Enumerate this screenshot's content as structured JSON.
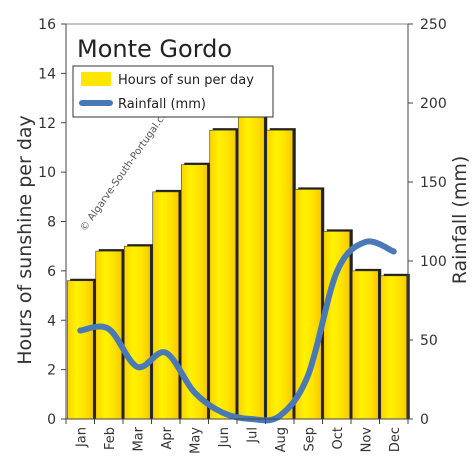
{
  "chart_data": {
    "type": "bar",
    "title": "Monte Gordo",
    "categories": [
      "Jan",
      "Feb",
      "Mar",
      "Apr",
      "May",
      "Jun",
      "Jul",
      "Aug",
      "Sep",
      "Oct",
      "Nov",
      "Dec"
    ],
    "series": [
      {
        "name": "Hours of sun per day",
        "type": "bar",
        "axis": "left",
        "values": [
          5.6,
          6.8,
          7.0,
          9.2,
          10.3,
          11.7,
          12.4,
          11.7,
          9.3,
          7.6,
          6.0,
          5.8
        ]
      },
      {
        "name": "Rainfall (mm)",
        "type": "line",
        "axis": "right",
        "values": [
          56,
          57,
          33,
          42,
          17,
          4,
          0,
          2,
          28,
          93,
          112,
          106
        ]
      }
    ],
    "ylabel": "Hours of sunshine per day",
    "y2label": "Rainfall (mm)",
    "ylim": [
      0,
      16
    ],
    "yticks": [
      0,
      2,
      4,
      6,
      8,
      10,
      12,
      14,
      16
    ],
    "y2lim": [
      0,
      250
    ],
    "y2ticks": [
      0,
      50,
      100,
      150,
      200,
      250
    ],
    "watermark": "© Algarve-South-Portugal.com",
    "legend_position": "top-left",
    "grid": false,
    "colors": {
      "bar_fill": "#ffe600",
      "bar_stroke": "#111111",
      "line": "#4a7ab5",
      "axis": "#444444"
    }
  }
}
